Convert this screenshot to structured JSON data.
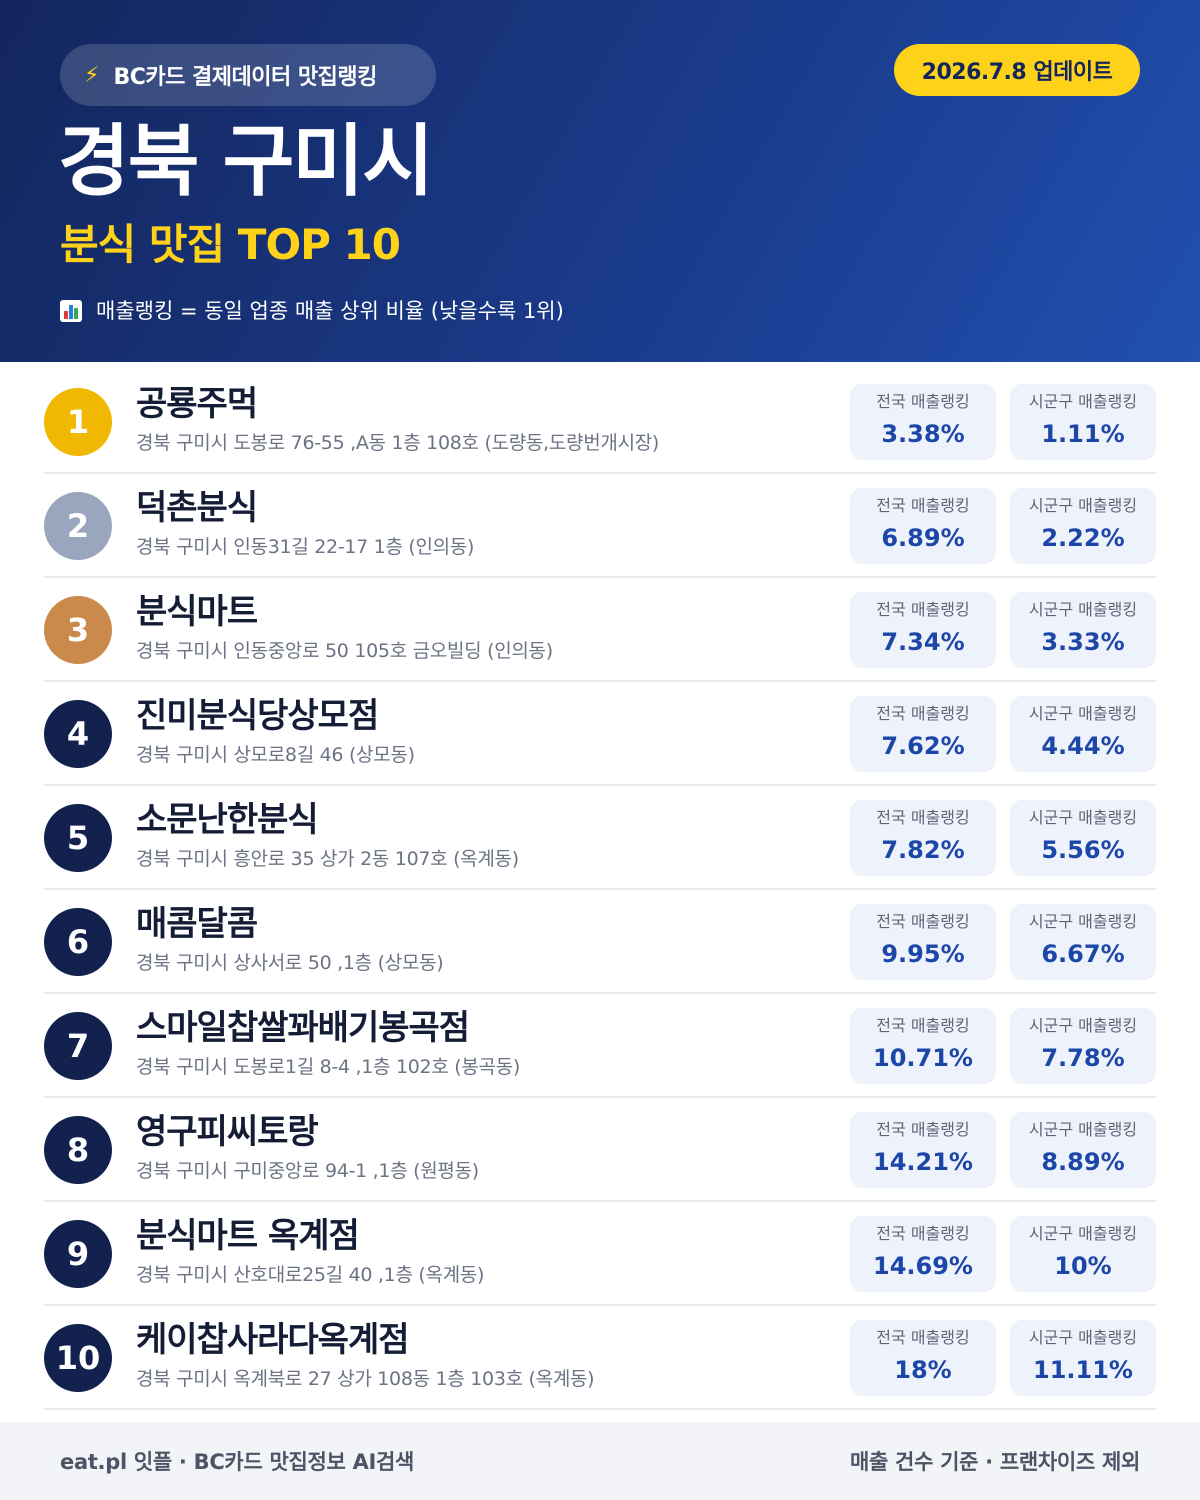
{
  "header": {
    "brand": "BC카드 결제데이터 맛집랭킹",
    "brand_icon": "lightning-icon",
    "update": "2026.7.8 업데이트",
    "title": "경북 구미시",
    "subtitle": "분식 맛집 TOP 10",
    "note_icon": "bar-chart-icon",
    "note": "매출랭킹 = 동일 업종 매출 상위 비율 (낮을수록 1위)"
  },
  "colors": {
    "header_dark": "#13265c",
    "header_light": "#2150b0",
    "accent_yellow": "#ffd21a",
    "gold": "#f0b800",
    "silver": "#9aa6bd",
    "bronze": "#c98a4b",
    "navy_badge": "#13214f",
    "stat_value": "#1c47a8"
  },
  "stat_labels": {
    "national": "전국 매출랭킹",
    "local": "시군구 매출랭킹"
  },
  "restaurants": [
    {
      "rank": "1",
      "name": "공룡주먹",
      "address": "경북 구미시 도봉로 76-55 ,A동 1층 108호 (도량동,도량번개시장)",
      "national": "3.38%",
      "local": "1.11%",
      "badge_color": "#f0b800"
    },
    {
      "rank": "2",
      "name": "덕촌분식",
      "address": "경북 구미시 인동31길 22-17 1층 (인의동)",
      "national": "6.89%",
      "local": "2.22%",
      "badge_color": "#9aa6bd"
    },
    {
      "rank": "3",
      "name": "분식마트",
      "address": "경북 구미시 인동중앙로 50 105호 금오빌딩 (인의동)",
      "national": "7.34%",
      "local": "3.33%",
      "badge_color": "#c98a4b"
    },
    {
      "rank": "4",
      "name": "진미분식당상모점",
      "address": "경북 구미시 상모로8길 46 (상모동)",
      "national": "7.62%",
      "local": "4.44%",
      "badge_color": "#13214f"
    },
    {
      "rank": "5",
      "name": "소문난한분식",
      "address": "경북 구미시 흥안로 35 상가 2동 107호 (옥계동)",
      "national": "7.82%",
      "local": "5.56%",
      "badge_color": "#13214f"
    },
    {
      "rank": "6",
      "name": "매콤달콤",
      "address": "경북 구미시 상사서로 50 ,1층 (상모동)",
      "national": "9.95%",
      "local": "6.67%",
      "badge_color": "#13214f"
    },
    {
      "rank": "7",
      "name": "스마일찹쌀꽈배기봉곡점",
      "address": "경북 구미시 도봉로1길 8-4 ,1층 102호 (봉곡동)",
      "national": "10.71%",
      "local": "7.78%",
      "badge_color": "#13214f"
    },
    {
      "rank": "8",
      "name": "영구피씨토랑",
      "address": "경북 구미시 구미중앙로 94-1 ,1층 (원평동)",
      "national": "14.21%",
      "local": "8.89%",
      "badge_color": "#13214f"
    },
    {
      "rank": "9",
      "name": "분식마트 옥계점",
      "address": "경북 구미시 산호대로25길 40 ,1층 (옥계동)",
      "national": "14.69%",
      "local": "10%",
      "badge_color": "#13214f"
    },
    {
      "rank": "10",
      "name": "케이찹사라다옥계점",
      "address": "경북 구미시 옥계북로 27 상가 108동 1층 103호 (옥계동)",
      "national": "18%",
      "local": "11.11%",
      "badge_color": "#13214f"
    }
  ],
  "footer": {
    "left": "eat.pl 잇플 · BC카드 맛집정보 AI검색",
    "right": "매출 건수 기준 · 프랜차이즈 제외"
  }
}
